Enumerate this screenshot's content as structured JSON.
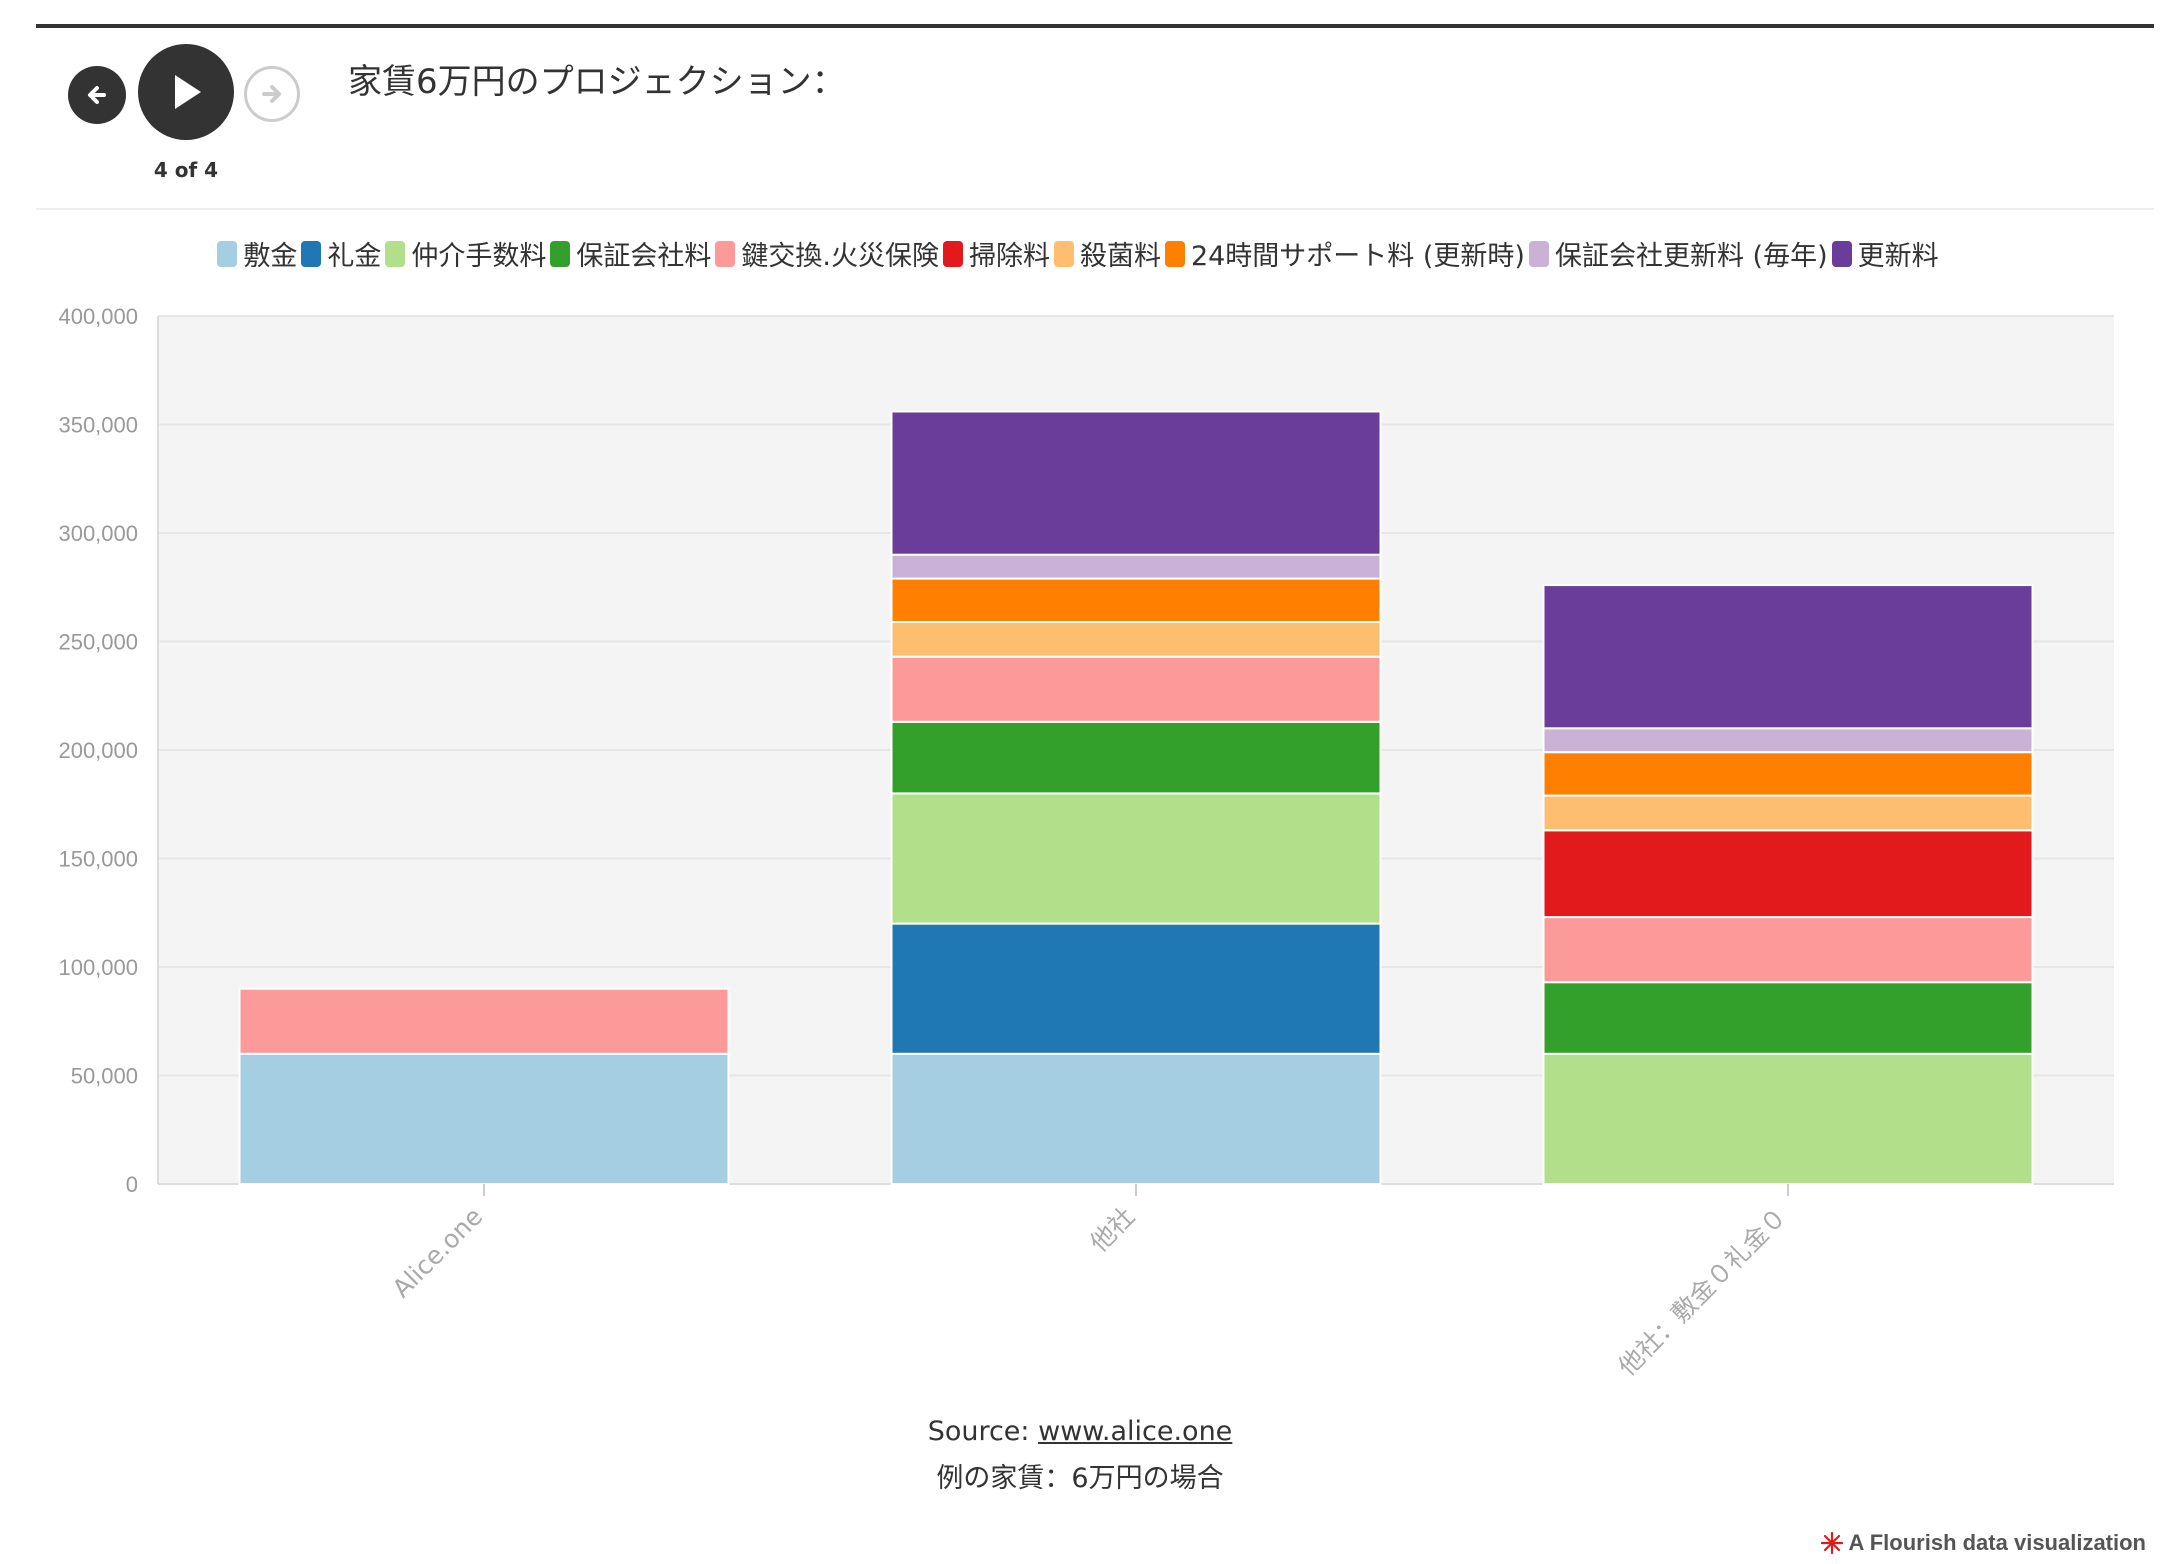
{
  "header": {
    "title": "家賃6万円のプロジェクション：",
    "step_counter": "4 of 4",
    "controls": {
      "prev_icon": "arrow-left-icon",
      "play_icon": "play-icon",
      "next_icon": "arrow-right-icon"
    }
  },
  "footer": {
    "source_prefix": "Source: ",
    "source_link": "www.alice.one",
    "note": "例の家賃：6万円の場合",
    "brand": "A Flourish data visualization"
  },
  "chart_data": {
    "type": "bar",
    "stacked": true,
    "categories": [
      "Alice.one",
      "他社",
      "他社：敷金０礼金０"
    ],
    "ylim": [
      0,
      400000
    ],
    "yticks": [
      "0",
      "50,000",
      "100,000",
      "150,000",
      "200,000",
      "250,000",
      "300,000",
      "350,000",
      "400,000"
    ],
    "ytick_values": [
      0,
      50000,
      100000,
      150000,
      200000,
      250000,
      300000,
      350000,
      400000
    ],
    "grid": true,
    "legend_position": "top",
    "series": [
      {
        "name": "敷金",
        "color": "#a6cee3",
        "values": [
          60000,
          60000,
          0
        ]
      },
      {
        "name": "礼金",
        "color": "#1f78b4",
        "values": [
          0,
          60000,
          0
        ]
      },
      {
        "name": "仲介手数料",
        "color": "#b2df8a",
        "values": [
          0,
          60000,
          60000
        ]
      },
      {
        "name": "保証会社料",
        "color": "#33a02c",
        "values": [
          0,
          33000,
          33000
        ]
      },
      {
        "name": "鍵交換.火災保険",
        "color": "#fb9a99",
        "values": [
          30000,
          30000,
          30000
        ]
      },
      {
        "name": "掃除料",
        "color": "#e31a1c",
        "values": [
          0,
          0,
          40000
        ]
      },
      {
        "name": "殺菌料",
        "color": "#fdbf6f",
        "values": [
          0,
          16000,
          16000
        ]
      },
      {
        "name": "24時間サポート料 (更新時)",
        "color": "#ff7f00",
        "values": [
          0,
          20000,
          20000
        ]
      },
      {
        "name": "保証会社更新料 (毎年)",
        "color": "#cab2d6",
        "values": [
          0,
          11000,
          11000
        ]
      },
      {
        "name": "更新料",
        "color": "#6a3d9a",
        "values": [
          0,
          66000,
          66000
        ]
      }
    ]
  }
}
